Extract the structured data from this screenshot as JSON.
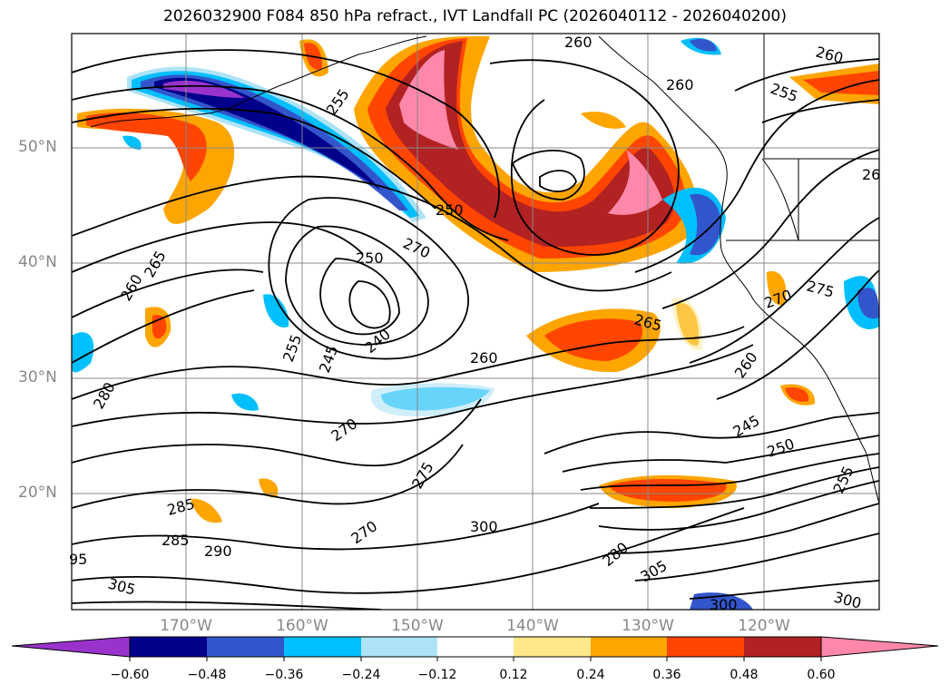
{
  "title": "2026032900 F084 850 hPa refract., IVT Landfall PC (2026040112 - 2026040200)",
  "lat_labels": [
    "50°N",
    "40°N",
    "30°N",
    "20°N"
  ],
  "lon_labels": [
    "170°W",
    "160°W",
    "150°W",
    "140°W",
    "130°W",
    "120°W"
  ],
  "contour_labels": [
    "260",
    "260",
    "255",
    "255",
    "260",
    "26",
    "250",
    "250",
    "270",
    "265",
    "260",
    "255",
    "245",
    "240",
    "260",
    "265",
    "270",
    "275",
    "260",
    "245",
    "250",
    "255",
    "280",
    "270",
    "275",
    "285",
    "285",
    "290",
    "270",
    "300",
    "280",
    "305",
    "300",
    "300",
    "305",
    "95"
  ],
  "colorbar": {
    "ticks": [
      "−0.60",
      "−0.48",
      "−0.36",
      "−0.24",
      "−0.12",
      "0.12",
      "0.24",
      "0.36",
      "0.48",
      "0.60"
    ],
    "colors": [
      "#9933cc",
      "#00008b",
      "#3355cc",
      "#00bfff",
      "#aee3f7",
      "#ffffff",
      "#ffe88a",
      "#ffa500",
      "#ff4500",
      "#b22222",
      "#ff88aa"
    ]
  }
}
